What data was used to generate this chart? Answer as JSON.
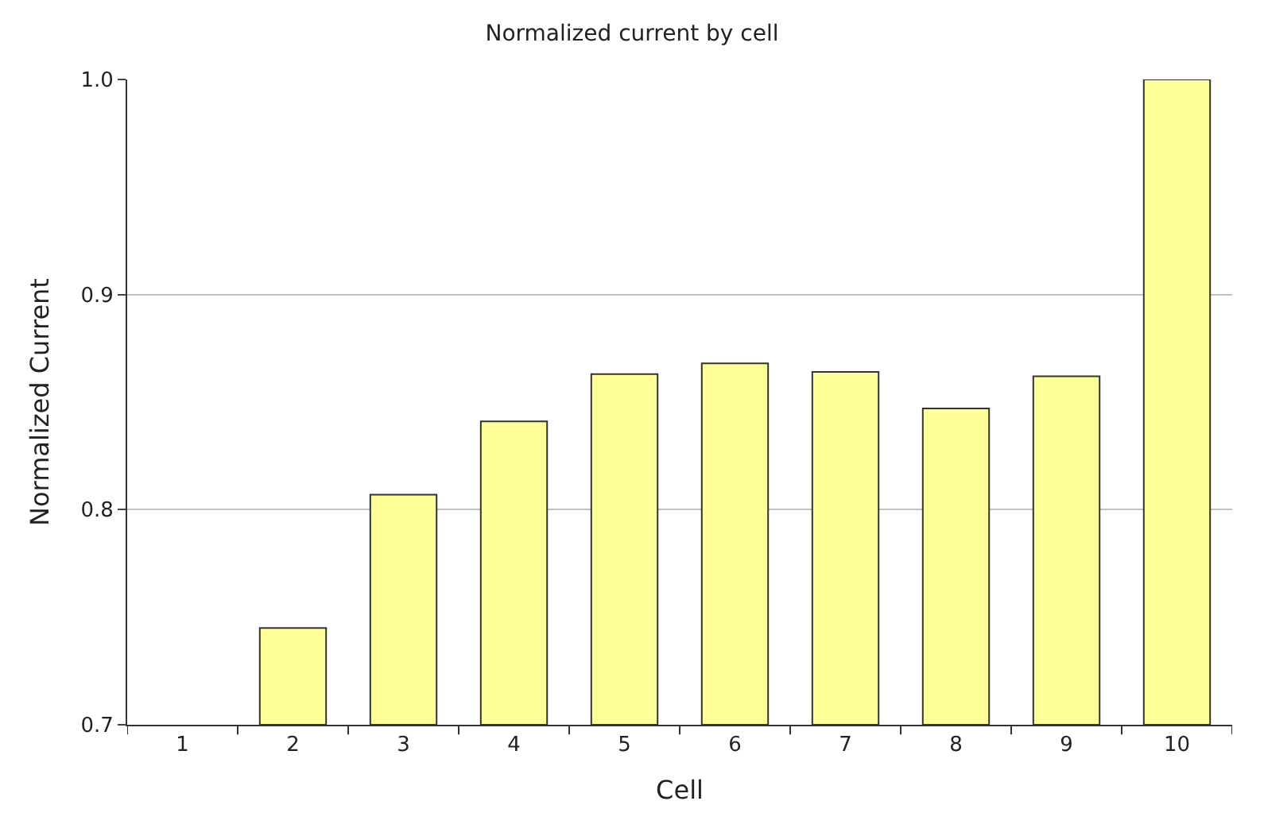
{
  "chart_data": {
    "type": "bar",
    "title": "Normalized current by cell",
    "xlabel": "Cell",
    "ylabel": "Normalized Current",
    "categories": [
      "1",
      "2",
      "3",
      "4",
      "5",
      "6",
      "7",
      "8",
      "9",
      "10"
    ],
    "values": [
      null,
      0.745,
      0.807,
      0.841,
      0.863,
      0.868,
      0.864,
      0.847,
      0.862,
      1.0
    ],
    "color": "#ffff99",
    "ylim": [
      0.7,
      1.0
    ],
    "yticks": [
      0.7,
      0.8,
      0.9,
      {
        "value": 1.0,
        "label": "1.0"
      }
    ],
    "grid": "y"
  }
}
